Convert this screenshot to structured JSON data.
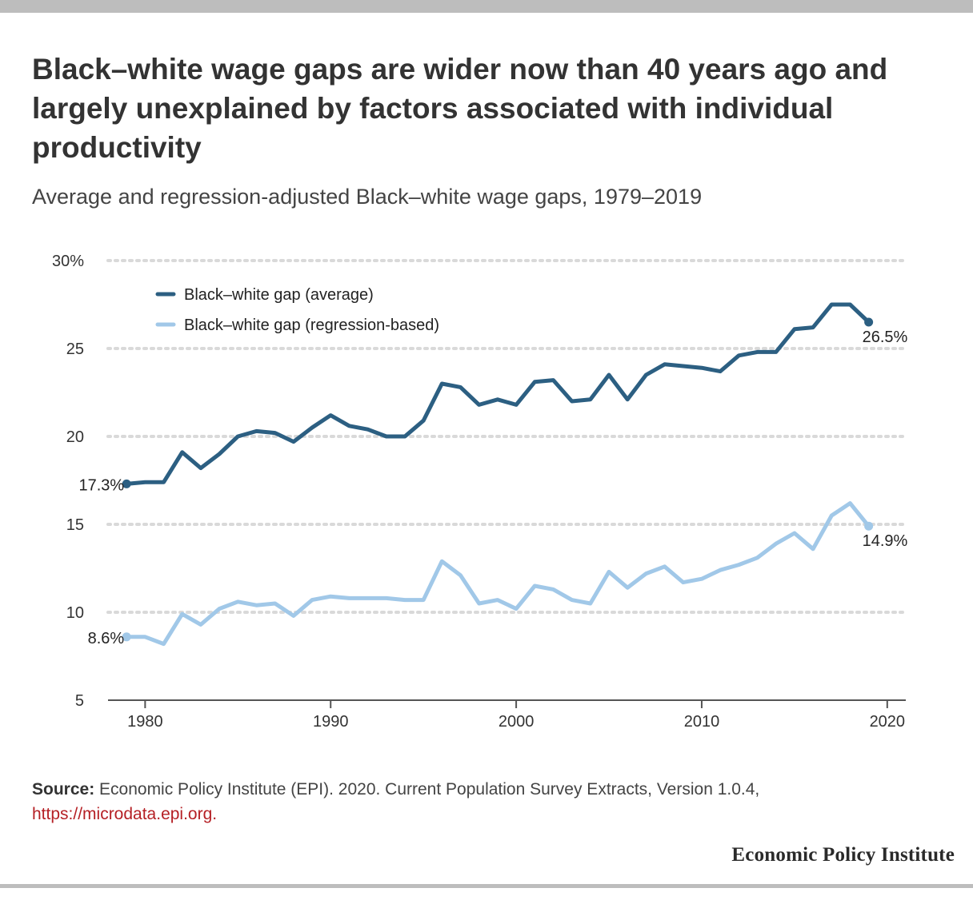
{
  "title": "Black–white wage gaps are wider now than 40 years ago and largely unexplained by factors associated with individual productivity",
  "subtitle": "Average and regression-adjusted Black–white wage gaps, 1979–2019",
  "source": {
    "label": "Source:",
    "text": " Economic Policy Institute (EPI). 2020. Current Population Survey Extracts, Version 1.0.4, ",
    "link": "https://microdata.epi.org."
  },
  "logo": "Economic Policy Institute",
  "colors": {
    "average": "#2c5f82",
    "regression": "#a1c8e8",
    "grid": "#d9d9d9",
    "axis": "#555555"
  },
  "chart_data": {
    "type": "line",
    "title": "Average and regression-adjusted Black–white wage gaps, 1979–2019",
    "xlabel": "",
    "ylabel": "",
    "xlim": [
      1978,
      2021
    ],
    "ylim": [
      5,
      30
    ],
    "x_ticks": [
      1980,
      1990,
      2000,
      2010,
      2020
    ],
    "y_ticks": [
      {
        "value": 5,
        "label": "5"
      },
      {
        "value": 10,
        "label": "10"
      },
      {
        "value": 15,
        "label": "15"
      },
      {
        "value": 20,
        "label": "20"
      },
      {
        "value": 25,
        "label": "25"
      },
      {
        "value": 30,
        "label": "30%"
      }
    ],
    "grid": true,
    "legend_position": "top-left",
    "x": [
      1979,
      1980,
      1981,
      1982,
      1983,
      1984,
      1985,
      1986,
      1987,
      1988,
      1989,
      1990,
      1991,
      1992,
      1993,
      1994,
      1995,
      1996,
      1997,
      1998,
      1999,
      2000,
      2001,
      2002,
      2003,
      2004,
      2005,
      2006,
      2007,
      2008,
      2009,
      2010,
      2011,
      2012,
      2013,
      2014,
      2015,
      2016,
      2017,
      2018,
      2019
    ],
    "series": [
      {
        "key": "average",
        "name": "Black–white gap (average)",
        "values": [
          17.3,
          17.4,
          17.4,
          19.1,
          18.2,
          19.0,
          20.0,
          20.3,
          20.2,
          19.7,
          20.5,
          21.2,
          20.6,
          20.4,
          20.0,
          20.0,
          20.9,
          23.0,
          22.8,
          21.8,
          22.1,
          21.8,
          23.1,
          23.2,
          22.0,
          22.1,
          23.5,
          22.1,
          23.5,
          24.1,
          24.0,
          23.9,
          23.7,
          24.6,
          24.8,
          24.8,
          26.1,
          26.2,
          27.5,
          27.5,
          26.5
        ],
        "start_label": "17.3%",
        "end_label": "26.5%"
      },
      {
        "key": "regression",
        "name": "Black–white gap (regression-based)",
        "values": [
          8.6,
          8.6,
          8.2,
          9.9,
          9.3,
          10.2,
          10.6,
          10.4,
          10.5,
          9.8,
          10.7,
          10.9,
          10.8,
          10.8,
          10.8,
          10.7,
          10.7,
          12.9,
          12.1,
          10.5,
          10.7,
          10.2,
          11.5,
          11.3,
          10.7,
          10.5,
          12.3,
          11.4,
          12.2,
          12.6,
          11.7,
          11.9,
          12.4,
          12.7,
          13.1,
          13.9,
          14.5,
          13.6,
          15.5,
          16.2,
          14.9
        ],
        "start_label": "8.6%",
        "end_label": "14.9%"
      }
    ]
  }
}
